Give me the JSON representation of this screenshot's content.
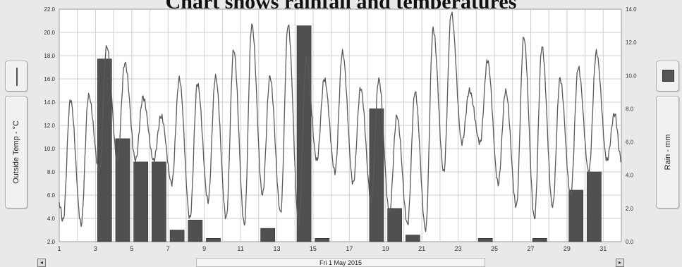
{
  "title": "Chart shows rainfall and temperatures",
  "left_axis_label": "Outside Temp - °C",
  "right_axis_label": "Rain - mm",
  "date_label": "Fri 1 May 2015",
  "nav_prev_glyph": "◂",
  "nav_next_glyph": "▸",
  "colors": {
    "line": "#5a5a5a",
    "bars": "#505050",
    "grid": "#cfcfcf",
    "plot_bg": "#ffffff"
  },
  "chart_data": {
    "type": "bar+line",
    "grid": true,
    "x": {
      "ticks": [
        "1",
        "3",
        "5",
        "7",
        "9",
        "11",
        "13",
        "15",
        "17",
        "19",
        "21",
        "23",
        "25",
        "27",
        "29",
        "31"
      ],
      "range_days": [
        1,
        32
      ]
    },
    "y_left": {
      "label": "Outside Temp - °C",
      "range": [
        2,
        22
      ],
      "ticks": [
        "2.0",
        "4.0",
        "6.0",
        "8.0",
        "10.0",
        "12.0",
        "14.0",
        "16.0",
        "18.0",
        "20.0",
        "22.0"
      ]
    },
    "y_right": {
      "label": "Rain - mm",
      "range": [
        0,
        14
      ],
      "ticks": [
        "0.0",
        "2.0",
        "4.0",
        "6.0",
        "8.0",
        "10.0",
        "12.0",
        "14.0"
      ]
    },
    "rain_series": {
      "name": "Rain - mm",
      "days": [
        1,
        2,
        3,
        4,
        5,
        6,
        7,
        8,
        9,
        10,
        11,
        12,
        13,
        14,
        15,
        16,
        17,
        18,
        19,
        20,
        21,
        22,
        23,
        24,
        25,
        26,
        27,
        28,
        29,
        30,
        31
      ],
      "values": [
        0,
        0,
        11.0,
        6.2,
        4.8,
        4.8,
        0.7,
        1.3,
        0.2,
        0,
        0,
        0.8,
        0,
        13.0,
        0.2,
        0,
        0,
        8.0,
        2.0,
        0.4,
        0,
        0,
        0,
        0.2,
        0,
        0,
        0.2,
        0,
        3.1,
        4.2,
        0
      ]
    },
    "temp_series": {
      "name": "Outside Temp - °C",
      "days": [
        1,
        2,
        3,
        4,
        5,
        6,
        7,
        8,
        9,
        10,
        11,
        12,
        13,
        14,
        15,
        16,
        17,
        18,
        19,
        20,
        21,
        22,
        23,
        24,
        25,
        26,
        27,
        28,
        29,
        30,
        31
      ],
      "daily_min": [
        3.8,
        3.5,
        8.0,
        9.0,
        9.0,
        9.0,
        7.0,
        4.0,
        5.5,
        4.0,
        3.5,
        6.0,
        4.5,
        3.5,
        9.0,
        8.0,
        7.0,
        5.5,
        4.5,
        3.5,
        3.0,
        8.0,
        10.5,
        10.5,
        7.0,
        5.0,
        4.0,
        5.0,
        6.0,
        8.0,
        9.0
      ],
      "daily_max": [
        14.2,
        14.6,
        18.8,
        17.4,
        14.4,
        12.8,
        16.0,
        15.6,
        16.2,
        18.5,
        20.7,
        16.2,
        20.7,
        17.7,
        16.0,
        18.3,
        15.2,
        16.0,
        12.8,
        14.9,
        20.3,
        21.7,
        15.0,
        17.6,
        15.0,
        19.6,
        18.8,
        16.0,
        17.0,
        18.3,
        13.0
      ]
    }
  }
}
